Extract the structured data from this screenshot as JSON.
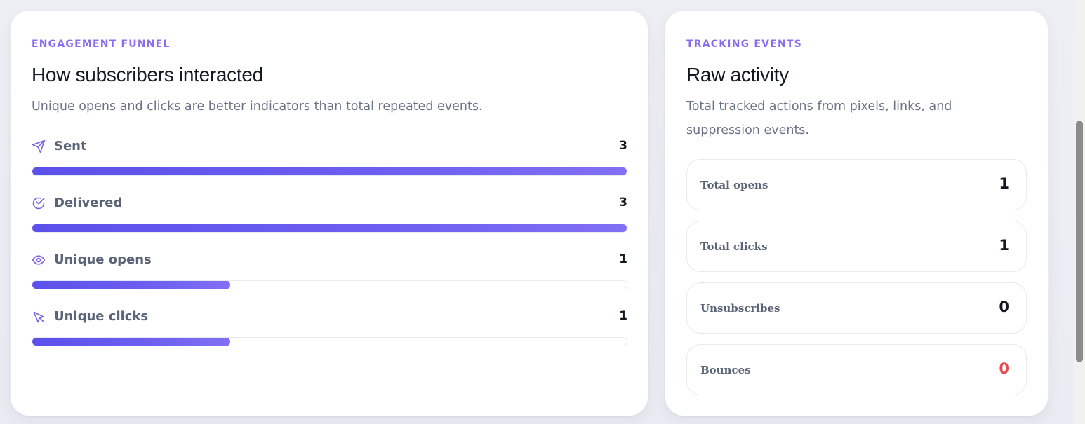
{
  "funnel": {
    "eyebrow": "ENGAGEMENT FUNNEL",
    "title": "How subscribers interacted",
    "subtitle": "Unique opens and clicks are better indicators than total repeated events.",
    "max": 3,
    "rows": [
      {
        "label": "Sent",
        "value": "3",
        "count": 3,
        "icon": "send-icon"
      },
      {
        "label": "Delivered",
        "value": "3",
        "count": 3,
        "icon": "check-circle-icon"
      },
      {
        "label": "Unique opens",
        "value": "1",
        "count": 1,
        "icon": "eye-icon"
      },
      {
        "label": "Unique clicks",
        "value": "1",
        "count": 1,
        "icon": "cursor-click-icon"
      }
    ],
    "bar_color": "#6359ee"
  },
  "tracking": {
    "eyebrow": "TRACKING EVENTS",
    "title": "Raw activity",
    "subtitle": "Total tracked actions from pixels, links, and suppression events.",
    "events": [
      {
        "label": "Total opens",
        "value": "1"
      },
      {
        "label": "Total clicks",
        "value": "1"
      },
      {
        "label": "Unsubscribes",
        "value": "0"
      },
      {
        "label": "Bounces",
        "value": "0",
        "status_color": "#e5484d"
      }
    ]
  },
  "accent_color": "#8a6cf0"
}
